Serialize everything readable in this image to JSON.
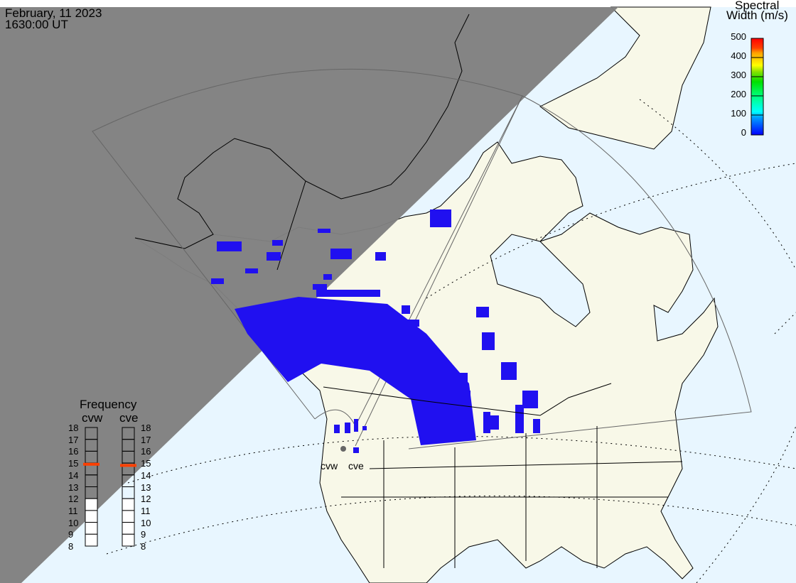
{
  "header": {
    "date": "February, 11 2023",
    "time": "1630:00 UT"
  },
  "colorbar": {
    "title_line1": "Spectral",
    "title_line2": "Width (m/s)",
    "ticks": [
      "500",
      "400",
      "300",
      "200",
      "100",
      "0"
    ],
    "range": [
      0,
      500
    ],
    "colors": [
      "#0000ff",
      "#00a0ff",
      "#00ffff",
      "#00ff80",
      "#00e000",
      "#80e000",
      "#ffff00",
      "#ffa000",
      "#ff4000",
      "#ff0000"
    ]
  },
  "frequency": {
    "title": "Frequency",
    "ticks": [
      "18",
      "17",
      "16",
      "15",
      "14",
      "13",
      "12",
      "11",
      "10",
      "9",
      "8"
    ],
    "radars": [
      {
        "name": "cvw",
        "value_mhz": 14.9
      },
      {
        "name": "cve",
        "value_mhz": 14.8
      }
    ],
    "marker_color": "#ff4000"
  },
  "map": {
    "site_labels": [
      "cvw",
      "cve"
    ],
    "colors": {
      "ocean": "#e8f6ff",
      "land": "#f8f8e8",
      "night": "#808080",
      "scatter": "#2010f0"
    }
  }
}
